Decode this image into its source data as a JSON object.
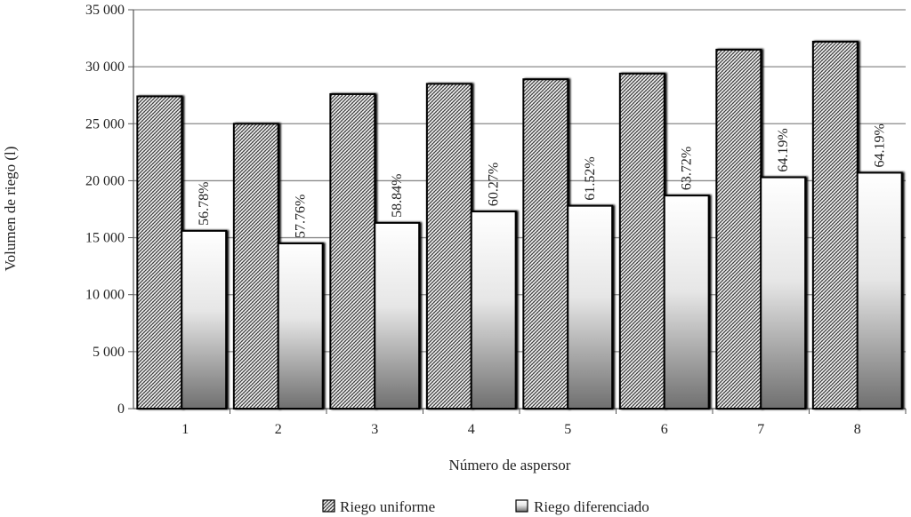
{
  "chart_data": {
    "type": "bar",
    "xlabel": "Número de aspersor",
    "ylabel": "Volumen de riego (l)",
    "categories": [
      "1",
      "2",
      "3",
      "4",
      "5",
      "6",
      "7",
      "8"
    ],
    "ylim": [
      0,
      35000
    ],
    "yticks": [
      0,
      5000,
      10000,
      15000,
      20000,
      25000,
      30000,
      35000
    ],
    "ytick_labels": [
      "0",
      "5 000",
      "10 000",
      "15 000",
      "20 000",
      "25 000",
      "30 000",
      "35 000"
    ],
    "grid": true,
    "legend_position": "bottom",
    "series": [
      {
        "name": "Riego uniforme",
        "style": "crosshatch",
        "values": [
          27400,
          25000,
          27600,
          28500,
          28900,
          29400,
          31500,
          32200
        ]
      },
      {
        "name": "Riego diferenciado",
        "style": "gradient",
        "values": [
          15600,
          14500,
          16300,
          17300,
          17800,
          18700,
          20300,
          20700
        ]
      }
    ],
    "data_labels": [
      "56.78%",
      "57.76%",
      "58.84%",
      "60.27%",
      "61.52%",
      "63.72%",
      "64.19%",
      "64.19%"
    ]
  },
  "colors": {
    "axis": "#555555",
    "grid": "#8a8a8a",
    "bar_outline": "#000000",
    "hatch_light": "#ffffff",
    "hatch_dark": "#444444",
    "gradient_top": "#ffffff",
    "gradient_bottom": "#6f6f6f"
  }
}
